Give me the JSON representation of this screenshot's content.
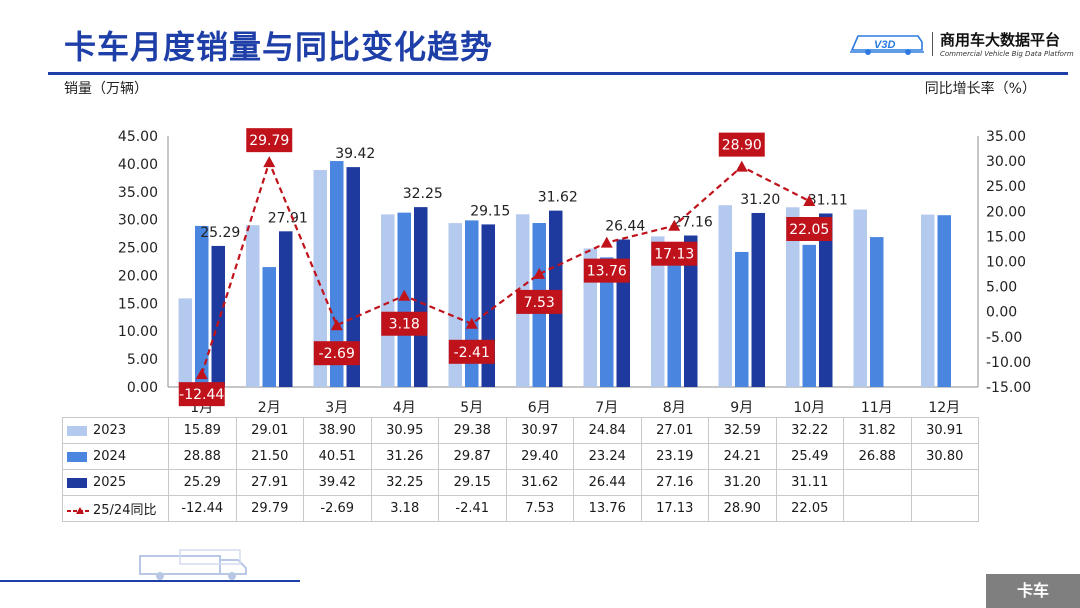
{
  "header": {
    "title": "卡车月度销量与同比变化趋势",
    "brand_name": "商用车大数据平台",
    "brand_sub": "Commercial Vehicle Big Data Platform",
    "brand_badge": "V3D"
  },
  "footer": {
    "tag": "卡车"
  },
  "colors": {
    "s2023": "#b4c9ee",
    "s2024": "#4a86df",
    "s2025": "#1e3a9e",
    "yoy": "#c0121b",
    "accent": "#1f3fa8"
  },
  "chart_data": {
    "type": "bar",
    "categories": [
      "1月",
      "2月",
      "3月",
      "4月",
      "5月",
      "6月",
      "7月",
      "8月",
      "9月",
      "10月",
      "11月",
      "12月"
    ],
    "ylabel": "销量（万辆）",
    "y2label": "同比增长率（%）",
    "ylim": [
      0,
      45
    ],
    "y_ticks": [
      "0.00",
      "5.00",
      "10.00",
      "15.00",
      "20.00",
      "25.00",
      "30.00",
      "35.00",
      "40.00",
      "45.00"
    ],
    "y2lim": [
      -15,
      35
    ],
    "y2_ticks": [
      "-15.00",
      "-10.00",
      "-5.00",
      "0.00",
      "5.00",
      "10.00",
      "15.00",
      "20.00",
      "25.00",
      "30.00",
      "35.00"
    ],
    "series": [
      {
        "name": "2023",
        "type": "bar",
        "values": [
          15.89,
          29.01,
          38.9,
          30.95,
          29.38,
          30.97,
          24.84,
          27.01,
          32.59,
          32.22,
          31.82,
          30.91
        ],
        "labels": [
          "15.89",
          "29.01",
          "38.90",
          "30.95",
          "29.38",
          "30.97",
          "24.84",
          "27.01",
          "32.59",
          "32.22",
          "31.82",
          "30.91"
        ]
      },
      {
        "name": "2024",
        "type": "bar",
        "values": [
          28.88,
          21.5,
          40.51,
          31.26,
          29.87,
          29.4,
          23.24,
          23.19,
          24.21,
          25.49,
          26.88,
          30.8
        ],
        "labels": [
          "28.88",
          "21.50",
          "40.51",
          "31.26",
          "29.87",
          "29.40",
          "23.24",
          "23.19",
          "24.21",
          "25.49",
          "26.88",
          "30.80"
        ]
      },
      {
        "name": "2025",
        "type": "bar",
        "values": [
          25.29,
          27.91,
          39.42,
          32.25,
          29.15,
          31.62,
          26.44,
          27.16,
          31.2,
          31.11,
          null,
          null
        ],
        "labels": [
          "25.29",
          "27.91",
          "39.42",
          "32.25",
          "29.15",
          "31.62",
          "26.44",
          "27.16",
          "31.20",
          "31.11",
          "",
          ""
        ]
      },
      {
        "name": "25/24同比",
        "type": "line",
        "axis": "right",
        "values": [
          -12.44,
          29.79,
          -2.69,
          3.18,
          -2.41,
          7.53,
          13.76,
          17.13,
          28.9,
          22.05,
          null,
          null
        ],
        "labels": [
          "-12.44",
          "29.79",
          "-2.69",
          "3.18",
          "-2.41",
          "7.53",
          "13.76",
          "17.13",
          "28.90",
          "22.05",
          "",
          ""
        ]
      }
    ]
  }
}
